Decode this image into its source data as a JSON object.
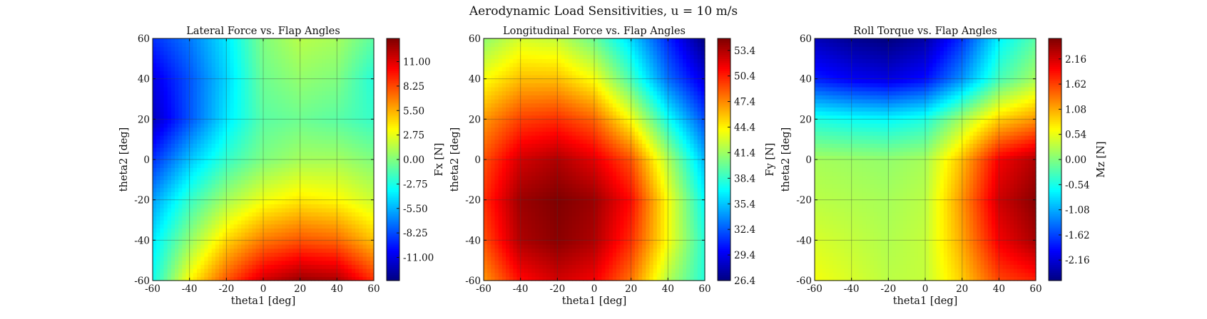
{
  "figure": {
    "suptitle": "Aerodynamic Load Sensitivities, u = 10 m/s"
  },
  "chart_data": [
    {
      "type": "heatmap",
      "title": "Lateral Force vs. Flap Angles",
      "xlabel": "theta1 [deg]",
      "ylabel": "theta2 [deg]",
      "colorbar_label": "Fx [N]",
      "colormap": "jet",
      "xlim": [
        -60,
        60
      ],
      "ylim": [
        -60,
        60
      ],
      "xticks": [
        -60,
        -40,
        -20,
        0,
        20,
        40,
        60
      ],
      "yticks": [
        -60,
        -40,
        -20,
        0,
        20,
        40,
        60
      ],
      "clim": [
        -13.6,
        13.6
      ],
      "colorbar_ticks": [
        "-11.00",
        "-8.25",
        "-5.50",
        "-2.75",
        "0.00",
        "2.75",
        "5.50",
        "8.25",
        "11.00"
      ],
      "grid": true,
      "x": [
        -60,
        -40,
        -20,
        0,
        20,
        40,
        60
      ],
      "y": [
        -60,
        -40,
        -20,
        0,
        20,
        40,
        60
      ],
      "z": [
        [
          -3.0,
          3.5,
          8.0,
          11.5,
          13.0,
          12.5,
          9.0
        ],
        [
          -4.0,
          0.5,
          4.5,
          7.0,
          8.0,
          7.5,
          5.0
        ],
        [
          -6.0,
          -2.0,
          1.0,
          3.0,
          4.0,
          3.5,
          2.0
        ],
        [
          -9.0,
          -5.0,
          -2.0,
          0.0,
          1.0,
          1.0,
          0.0
        ],
        [
          -12.0,
          -8.0,
          -4.0,
          -1.0,
          -0.5,
          -1.0,
          -2.0
        ],
        [
          -11.0,
          -8.0,
          -4.5,
          -0.5,
          0.5,
          0.0,
          -2.5
        ],
        [
          -9.0,
          -7.0,
          -4.0,
          0.0,
          1.5,
          1.0,
          -1.0
        ]
      ]
    },
    {
      "type": "heatmap",
      "title": "Longitudinal Force vs. Flap Angles",
      "xlabel": "theta1 [deg]",
      "ylabel": "theta2 [deg]",
      "colorbar_label": "Fy [N]",
      "colormap": "jet",
      "xlim": [
        -60,
        60
      ],
      "ylim": [
        -60,
        60
      ],
      "xticks": [
        -60,
        -40,
        -20,
        0,
        20,
        40,
        60
      ],
      "yticks": [
        -60,
        -40,
        -20,
        0,
        20,
        40,
        60
      ],
      "clim": [
        26.4,
        54.8
      ],
      "colorbar_ticks": [
        "26.4",
        "29.4",
        "32.4",
        "35.4",
        "38.4",
        "41.4",
        "44.4",
        "47.4",
        "50.4",
        "53.4"
      ],
      "grid": true,
      "x": [
        -60,
        -40,
        -20,
        0,
        20,
        40,
        60
      ],
      "y": [
        -60,
        -40,
        -20,
        0,
        20,
        40,
        60
      ],
      "z": [
        [
          47.0,
          51.0,
          52.5,
          51.5,
          48.0,
          42.0,
          38.0
        ],
        [
          49.0,
          53.5,
          54.5,
          53.5,
          50.0,
          44.0,
          38.0
        ],
        [
          50.0,
          54.0,
          54.8,
          54.0,
          51.0,
          44.0,
          37.0
        ],
        [
          49.0,
          52.5,
          53.5,
          52.0,
          49.0,
          42.0,
          35.0
        ],
        [
          47.0,
          49.5,
          50.0,
          48.5,
          44.0,
          37.5,
          32.0
        ],
        [
          44.0,
          46.0,
          46.0,
          44.0,
          39.0,
          33.0,
          29.0
        ],
        [
          41.0,
          43.0,
          42.5,
          40.0,
          36.0,
          31.0,
          26.4
        ]
      ]
    },
    {
      "type": "heatmap",
      "title": "Roll Torque vs. Flap Angles",
      "xlabel": "theta1 [deg]",
      "ylabel": "theta2 [deg]",
      "colorbar_label": "Mz [N]",
      "colormap": "jet",
      "xlim": [
        -60,
        60
      ],
      "ylim": [
        -60,
        60
      ],
      "xticks": [
        -60,
        -40,
        -20,
        0,
        20,
        40,
        60
      ],
      "yticks": [
        -60,
        -40,
        -20,
        0,
        20,
        40,
        60
      ],
      "clim": [
        -2.6,
        2.6
      ],
      "colorbar_ticks": [
        "-2.16",
        "-1.62",
        "-1.08",
        "-0.54",
        "0.00",
        "0.54",
        "1.08",
        "1.62",
        "2.16"
      ],
      "grid": true,
      "x": [
        -60,
        -40,
        -20,
        0,
        20,
        40,
        60
      ],
      "y": [
        -60,
        -40,
        -20,
        0,
        20,
        40,
        60
      ],
      "z": [
        [
          0.6,
          0.45,
          0.3,
          0.35,
          0.9,
          1.6,
          1.8
        ],
        [
          0.45,
          0.35,
          0.25,
          0.35,
          1.1,
          2.0,
          2.4
        ],
        [
          0.3,
          0.25,
          0.2,
          0.3,
          1.2,
          2.2,
          2.55
        ],
        [
          0.2,
          0.15,
          0.1,
          0.2,
          1.0,
          2.0,
          2.35
        ],
        [
          -0.5,
          -0.6,
          -0.65,
          -0.5,
          0.2,
          0.9,
          1.2
        ],
        [
          -1.8,
          -2.0,
          -2.1,
          -1.9,
          -1.2,
          -0.3,
          0.2
        ],
        [
          -2.3,
          -2.5,
          -2.6,
          -2.4,
          -1.7,
          -0.7,
          -0.2
        ]
      ]
    }
  ]
}
